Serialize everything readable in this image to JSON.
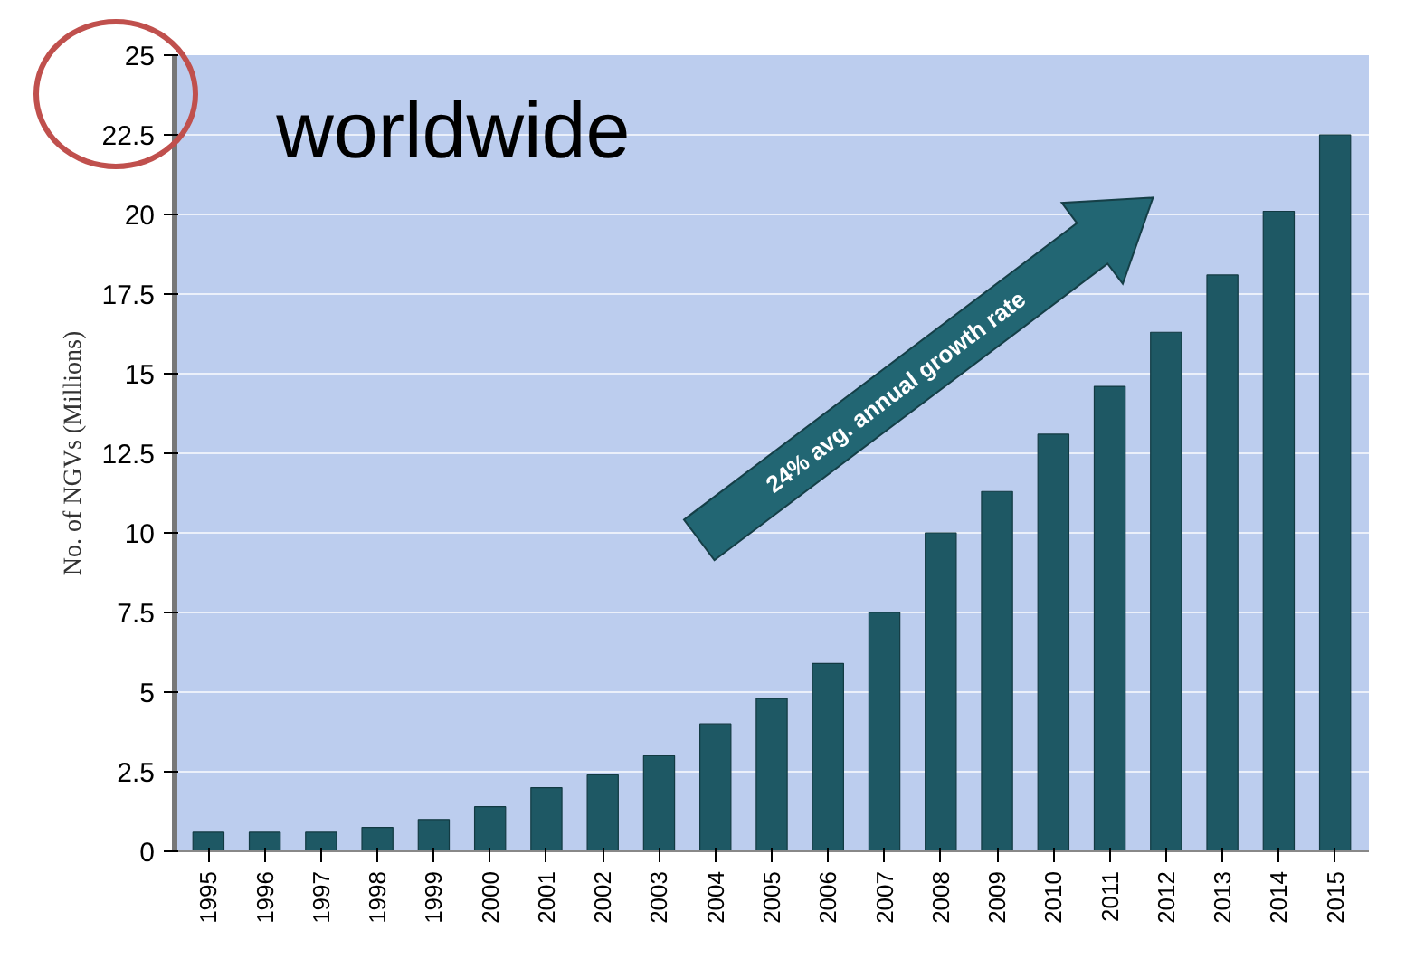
{
  "chart_data": {
    "type": "bar",
    "categories": [
      "1995",
      "1996",
      "1997",
      "1998",
      "1999",
      "2000",
      "2001",
      "2002",
      "2003",
      "2004",
      "2005",
      "2006",
      "2007",
      "2008",
      "2009",
      "2010",
      "2011",
      "2012",
      "2013",
      "2014",
      "2015"
    ],
    "values": [
      0.6,
      0.6,
      0.6,
      0.75,
      1.0,
      1.4,
      2.0,
      2.4,
      3.0,
      4.0,
      4.8,
      5.9,
      7.5,
      10.0,
      11.3,
      13.1,
      14.6,
      16.3,
      18.1,
      20.1,
      22.5
    ],
    "color": "#1e5864",
    "ylabel": "No. of NGVs (Millions)",
    "ylim": [
      0,
      25
    ],
    "yticks": [
      0,
      2.5,
      5,
      7.5,
      10,
      12.5,
      15,
      17.5,
      20,
      22.5,
      25
    ],
    "grid": "y",
    "annotations": [
      "worldwide",
      "24% avg. annual growth rate"
    ]
  }
}
